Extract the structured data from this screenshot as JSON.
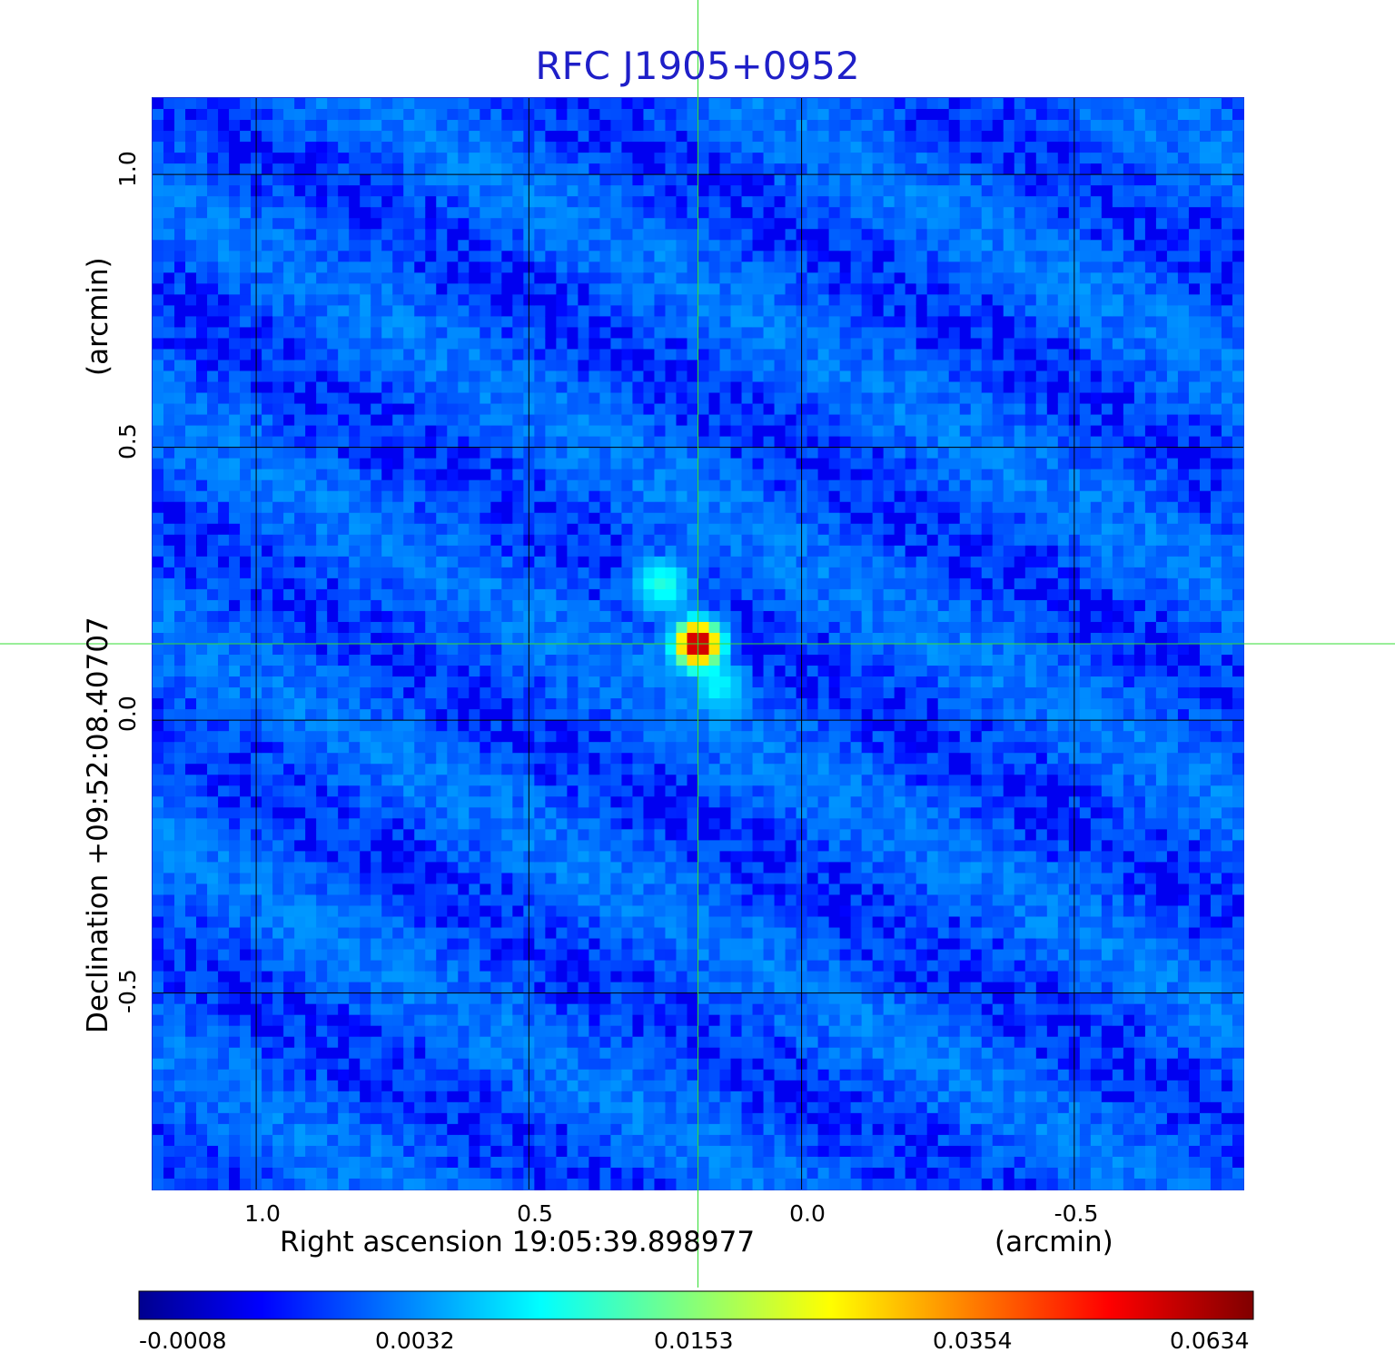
{
  "chart_data": {
    "type": "heatmap",
    "title": "RFC J1905+0952",
    "xlabel": "Right ascension  19:05:39.898977",
    "xlabel_unit": "(arcmin)",
    "ylabel": "Declination  +09:52:08.40707",
    "ylabel_unit": "(arcmin)",
    "xticks": [
      "1.0",
      "0.5",
      "0.0",
      "-0.5"
    ],
    "yticks": [
      "1.0",
      "0.5",
      "0.0",
      "-0.5"
    ],
    "x_tick_values": [
      1.0,
      0.5,
      0.0,
      -0.5
    ],
    "y_tick_values": [
      1.0,
      0.5,
      0.0,
      -0.5
    ],
    "xlim": [
      1.19,
      -0.81
    ],
    "ylim": [
      -0.86,
      1.14
    ],
    "grid": true,
    "colormap": "jet",
    "colorbar_ticks": [
      "-0.0008",
      "0.0032",
      "0.0153",
      "0.0354",
      "0.0634"
    ],
    "crosshair": {
      "x": 0.19,
      "y": 0.14,
      "color": "#33dd33"
    },
    "source_peak": {
      "x": 0.19,
      "y": 0.14,
      "value": 0.0634
    },
    "source_components": [
      {
        "x": 0.19,
        "y": 0.14,
        "peak": 0.0634
      },
      {
        "x": 0.255,
        "y": 0.245,
        "peak": 0.007
      },
      {
        "x": 0.15,
        "y": 0.06,
        "peak": 0.004
      }
    ],
    "background_level": 0.0001
  }
}
